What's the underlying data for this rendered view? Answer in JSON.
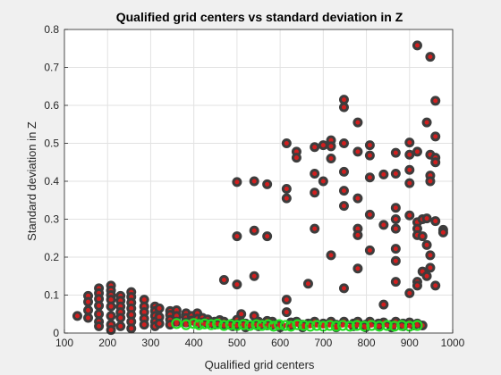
{
  "colors": {
    "figure_background": "#f0f0f0",
    "plot_background": "#ffffff",
    "grid": "#e2e2e2",
    "axis": "#262626",
    "marker_outline_all": "#3d3d3d",
    "marker_fill_all": "#d11f1f",
    "marker_outline_selected": "#22dd22",
    "marker_fill_selected": "#d11f1f"
  },
  "chart_data": {
    "type": "scatter",
    "title": "Qualified grid centers vs standard deviation in Z",
    "xlabel": "Qualified grid centers",
    "ylabel": "Standard deviation in Z",
    "xlim": [
      100,
      1000
    ],
    "ylim": [
      0,
      0.8
    ],
    "xticks": [
      "100",
      "200",
      "300",
      "400",
      "500",
      "600",
      "700",
      "800",
      "900",
      "1000"
    ],
    "yticks": [
      "0",
      "0.1",
      "0.2",
      "0.3",
      "0.4",
      "0.5",
      "0.6",
      "0.7",
      "0.8"
    ],
    "grid": true,
    "legend": "none",
    "series": [
      {
        "marker": "filled-circle",
        "points": [
          [
            130,
            0.045
          ],
          [
            155,
            0.098
          ],
          [
            155,
            0.082
          ],
          [
            155,
            0.06
          ],
          [
            155,
            0.04
          ],
          [
            180,
            0.118
          ],
          [
            180,
            0.105
          ],
          [
            180,
            0.09
          ],
          [
            180,
            0.072
          ],
          [
            180,
            0.05
          ],
          [
            180,
            0.03
          ],
          [
            180,
            0.018
          ],
          [
            208,
            0.125
          ],
          [
            208,
            0.112
          ],
          [
            208,
            0.1
          ],
          [
            208,
            0.088
          ],
          [
            208,
            0.07
          ],
          [
            208,
            0.045
          ],
          [
            208,
            0.022
          ],
          [
            208,
            0.008
          ],
          [
            230,
            0.098
          ],
          [
            230,
            0.085
          ],
          [
            230,
            0.07
          ],
          [
            230,
            0.055
          ],
          [
            230,
            0.04
          ],
          [
            230,
            0.018
          ],
          [
            255,
            0.108
          ],
          [
            255,
            0.095
          ],
          [
            255,
            0.08
          ],
          [
            255,
            0.065
          ],
          [
            255,
            0.048
          ],
          [
            255,
            0.03
          ],
          [
            255,
            0.012
          ],
          [
            285,
            0.088
          ],
          [
            285,
            0.07
          ],
          [
            285,
            0.055
          ],
          [
            285,
            0.038
          ],
          [
            285,
            0.022
          ],
          [
            310,
            0.07
          ],
          [
            310,
            0.058
          ],
          [
            310,
            0.045
          ],
          [
            310,
            0.03
          ],
          [
            310,
            0.018
          ],
          [
            320,
            0.065
          ],
          [
            320,
            0.042
          ],
          [
            320,
            0.025
          ],
          [
            345,
            0.058
          ],
          [
            345,
            0.048
          ],
          [
            345,
            0.035
          ],
          [
            345,
            0.022
          ],
          [
            360,
            0.06
          ],
          [
            360,
            0.045
          ],
          [
            360,
            0.03
          ],
          [
            382,
            0.052
          ],
          [
            382,
            0.04
          ],
          [
            382,
            0.028
          ],
          [
            395,
            0.045
          ],
          [
            395,
            0.033
          ],
          [
            408,
            0.052
          ],
          [
            408,
            0.038
          ],
          [
            408,
            0.025
          ],
          [
            420,
            0.04
          ],
          [
            420,
            0.028
          ],
          [
            432,
            0.036
          ],
          [
            432,
            0.026
          ],
          [
            448,
            0.03
          ],
          [
            448,
            0.022
          ],
          [
            460,
            0.034
          ],
          [
            460,
            0.024
          ],
          [
            470,
            0.14
          ],
          [
            470,
            0.03
          ],
          [
            470,
            0.02
          ],
          [
            490,
            0.025
          ],
          [
            490,
            0.018
          ],
          [
            500,
            0.398
          ],
          [
            500,
            0.255
          ],
          [
            500,
            0.128
          ],
          [
            500,
            0.035
          ],
          [
            500,
            0.022
          ],
          [
            510,
            0.05
          ],
          [
            510,
            0.028
          ],
          [
            520,
            0.025
          ],
          [
            520,
            0.015
          ],
          [
            540,
            0.4
          ],
          [
            540,
            0.27
          ],
          [
            540,
            0.15
          ],
          [
            540,
            0.045
          ],
          [
            540,
            0.022
          ],
          [
            550,
            0.03
          ],
          [
            550,
            0.018
          ],
          [
            570,
            0.392
          ],
          [
            570,
            0.255
          ],
          [
            570,
            0.032
          ],
          [
            570,
            0.02
          ],
          [
            582,
            0.03
          ],
          [
            582,
            0.022
          ],
          [
            600,
            0.022
          ],
          [
            600,
            0.015
          ],
          [
            615,
            0.5
          ],
          [
            615,
            0.38
          ],
          [
            615,
            0.355
          ],
          [
            615,
            0.088
          ],
          [
            615,
            0.055
          ],
          [
            625,
            0.028
          ],
          [
            625,
            0.02
          ],
          [
            638,
            0.478
          ],
          [
            638,
            0.462
          ],
          [
            638,
            0.03
          ],
          [
            652,
            0.022
          ],
          [
            652,
            0.015
          ],
          [
            665,
            0.13
          ],
          [
            665,
            0.025
          ],
          [
            680,
            0.49
          ],
          [
            680,
            0.42
          ],
          [
            680,
            0.37
          ],
          [
            680,
            0.275
          ],
          [
            680,
            0.03
          ],
          [
            700,
            0.495
          ],
          [
            700,
            0.4
          ],
          [
            700,
            0.025
          ],
          [
            718,
            0.508
          ],
          [
            718,
            0.492
          ],
          [
            718,
            0.46
          ],
          [
            718,
            0.205
          ],
          [
            718,
            0.03
          ],
          [
            730,
            0.022
          ],
          [
            730,
            0.015
          ],
          [
            748,
            0.615
          ],
          [
            748,
            0.595
          ],
          [
            748,
            0.5
          ],
          [
            748,
            0.425
          ],
          [
            748,
            0.375
          ],
          [
            748,
            0.335
          ],
          [
            748,
            0.118
          ],
          [
            748,
            0.03
          ],
          [
            770,
            0.025
          ],
          [
            770,
            0.018
          ],
          [
            780,
            0.555
          ],
          [
            780,
            0.478
          ],
          [
            780,
            0.355
          ],
          [
            780,
            0.275
          ],
          [
            780,
            0.258
          ],
          [
            780,
            0.17
          ],
          [
            780,
            0.03
          ],
          [
            798,
            0.022
          ],
          [
            798,
            0.015
          ],
          [
            808,
            0.495
          ],
          [
            808,
            0.468
          ],
          [
            808,
            0.41
          ],
          [
            808,
            0.312
          ],
          [
            808,
            0.218
          ],
          [
            808,
            0.03
          ],
          [
            828,
            0.025
          ],
          [
            828,
            0.018
          ],
          [
            840,
            0.418
          ],
          [
            840,
            0.285
          ],
          [
            840,
            0.075
          ],
          [
            840,
            0.028
          ],
          [
            858,
            0.022
          ],
          [
            858,
            0.015
          ],
          [
            868,
            0.475
          ],
          [
            868,
            0.42
          ],
          [
            868,
            0.33
          ],
          [
            868,
            0.3
          ],
          [
            868,
            0.275
          ],
          [
            868,
            0.222
          ],
          [
            868,
            0.19
          ],
          [
            868,
            0.135
          ],
          [
            868,
            0.03
          ],
          [
            885,
            0.025
          ],
          [
            885,
            0.018
          ],
          [
            900,
            0.502
          ],
          [
            900,
            0.47
          ],
          [
            900,
            0.43
          ],
          [
            900,
            0.395
          ],
          [
            900,
            0.31
          ],
          [
            900,
            0.105
          ],
          [
            900,
            0.028
          ],
          [
            910,
            0.02
          ],
          [
            918,
            0.758
          ],
          [
            918,
            0.478
          ],
          [
            918,
            0.292
          ],
          [
            918,
            0.275
          ],
          [
            918,
            0.258
          ],
          [
            918,
            0.135
          ],
          [
            918,
            0.125
          ],
          [
            918,
            0.025
          ],
          [
            930,
            0.3
          ],
          [
            930,
            0.255
          ],
          [
            930,
            0.162
          ],
          [
            930,
            0.02
          ],
          [
            940,
            0.555
          ],
          [
            940,
            0.302
          ],
          [
            940,
            0.232
          ],
          [
            940,
            0.15
          ],
          [
            948,
            0.728
          ],
          [
            948,
            0.47
          ],
          [
            948,
            0.415
          ],
          [
            948,
            0.4
          ],
          [
            948,
            0.205
          ],
          [
            948,
            0.172
          ],
          [
            960,
            0.612
          ],
          [
            960,
            0.518
          ],
          [
            960,
            0.462
          ],
          [
            960,
            0.45
          ],
          [
            960,
            0.295
          ],
          [
            960,
            0.125
          ],
          [
            978,
            0.272
          ],
          [
            978,
            0.265
          ]
        ]
      },
      {
        "marker": "hollow-circle",
        "points": [
          [
            360,
            0.025
          ],
          [
            382,
            0.022
          ],
          [
            400,
            0.025
          ],
          [
            412,
            0.022
          ],
          [
            425,
            0.024
          ],
          [
            440,
            0.022
          ],
          [
            455,
            0.024
          ],
          [
            470,
            0.02
          ],
          [
            485,
            0.022
          ],
          [
            500,
            0.02
          ],
          [
            515,
            0.022
          ],
          [
            530,
            0.02
          ],
          [
            545,
            0.022
          ],
          [
            558,
            0.02
          ],
          [
            572,
            0.022
          ],
          [
            585,
            0.018
          ],
          [
            598,
            0.022
          ],
          [
            612,
            0.02
          ],
          [
            625,
            0.018
          ],
          [
            640,
            0.022
          ],
          [
            655,
            0.02
          ],
          [
            670,
            0.018
          ],
          [
            685,
            0.02
          ],
          [
            700,
            0.018
          ],
          [
            715,
            0.02
          ],
          [
            730,
            0.018
          ],
          [
            745,
            0.02
          ],
          [
            762,
            0.018
          ],
          [
            778,
            0.02
          ],
          [
            795,
            0.018
          ],
          [
            812,
            0.02
          ],
          [
            830,
            0.018
          ],
          [
            848,
            0.02
          ],
          [
            865,
            0.018
          ],
          [
            882,
            0.02
          ],
          [
            900,
            0.018
          ],
          [
            918,
            0.02
          ]
        ]
      }
    ]
  }
}
